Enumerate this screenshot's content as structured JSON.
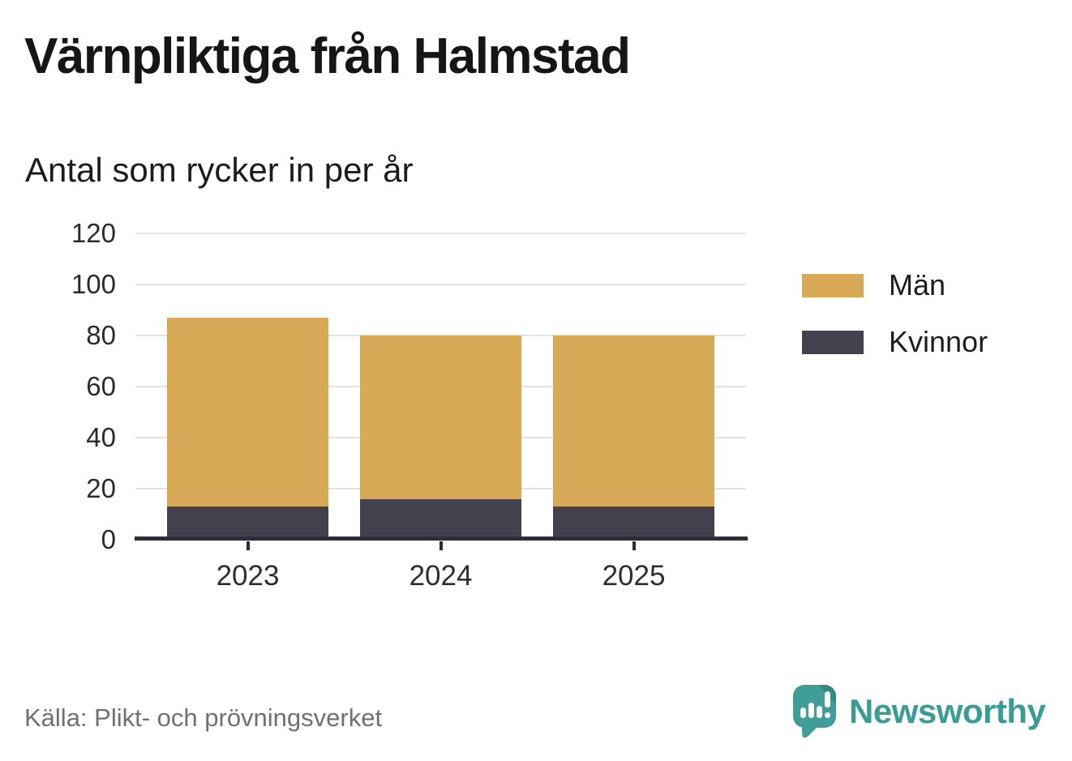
{
  "title": "Värnpliktiga från Halmstad",
  "subtitle": "Antal som rycker in per år",
  "source": "Källa: Plikt- och prövningsverket",
  "brand": {
    "name": "Newsworthy",
    "color": "#3a9c95",
    "icon": "bar-chart-speech-bubble-icon"
  },
  "colors": {
    "men": "#d8aa58",
    "women": "#44414f",
    "gridline": "#e2e2e2",
    "axis": "#2e2c38",
    "text": "#1c1c1c",
    "muted_text": "#6f6f75"
  },
  "legend": [
    {
      "label": "Män",
      "color": "#d8aa58"
    },
    {
      "label": "Kvinnor",
      "color": "#44414f"
    }
  ],
  "chart_data": {
    "type": "bar",
    "stacked": true,
    "title": "Värnpliktiga från Halmstad",
    "subtitle": "Antal som rycker in per år",
    "xlabel": "",
    "ylabel": "Antal som rycker in per år",
    "categories": [
      "2023",
      "2024",
      "2025"
    ],
    "series": [
      {
        "name": "Kvinnor",
        "color": "#44414f",
        "values": [
          13,
          16,
          13
        ]
      },
      {
        "name": "Män",
        "color": "#d8aa58",
        "values": [
          74,
          64,
          67
        ]
      }
    ],
    "totals": [
      87,
      80,
      80
    ],
    "ylim": [
      0,
      120
    ],
    "yticks": [
      0,
      20,
      40,
      60,
      80,
      100,
      120
    ],
    "grid": true,
    "legend_position": "right"
  }
}
